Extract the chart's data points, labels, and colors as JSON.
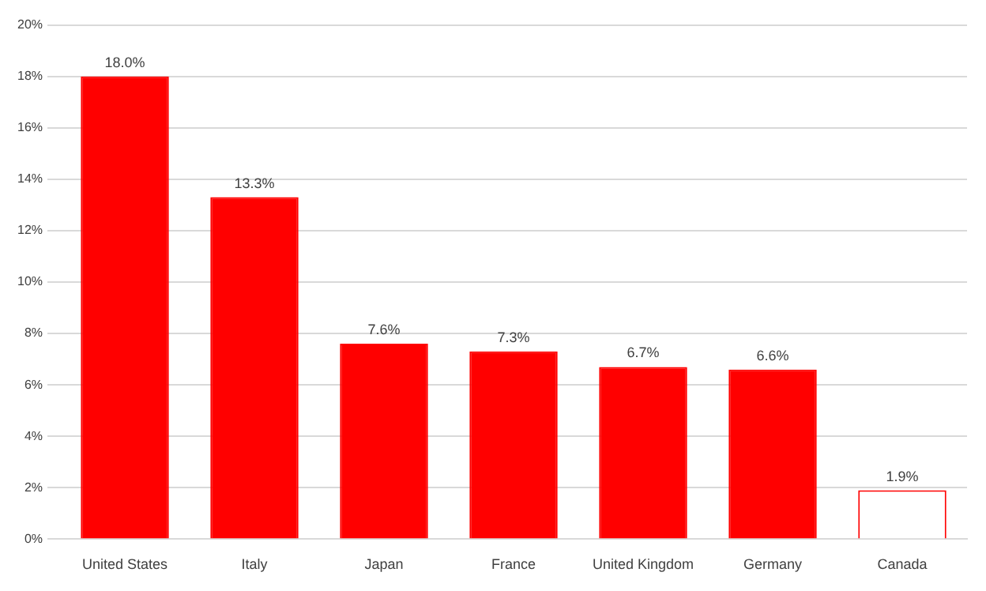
{
  "chart_data": {
    "type": "bar",
    "categories": [
      "United States",
      "Italy",
      "Japan",
      "France",
      "United Kingdom",
      "Germany",
      "Canada"
    ],
    "values": [
      18.0,
      13.3,
      7.6,
      7.3,
      6.7,
      6.6,
      1.9
    ],
    "value_labels": [
      "18.0%",
      "13.3%",
      "7.6%",
      "7.3%",
      "6.7%",
      "6.6%",
      "1.9%"
    ],
    "colors": [
      "#ff0000",
      "#ff0000",
      "#ff0000",
      "#ff0000",
      "#ff0000",
      "#ff0000",
      "#ffffff"
    ],
    "color": "#ff0000",
    "ylim": [
      0,
      20
    ],
    "yticks": [
      {
        "value": 0,
        "label": "0%"
      },
      {
        "value": 2,
        "label": "2%"
      },
      {
        "value": 4,
        "label": "4%"
      },
      {
        "value": 6,
        "label": "6%"
      },
      {
        "value": 8,
        "label": "8%"
      },
      {
        "value": 10,
        "label": "10%"
      },
      {
        "value": 12,
        "label": "12%"
      },
      {
        "value": 14,
        "label": "14%"
      },
      {
        "value": 16,
        "label": "16%"
      },
      {
        "value": 18,
        "label": "18%"
      },
      {
        "value": 20,
        "label": "20%"
      }
    ],
    "grid": "y",
    "legend": false
  }
}
